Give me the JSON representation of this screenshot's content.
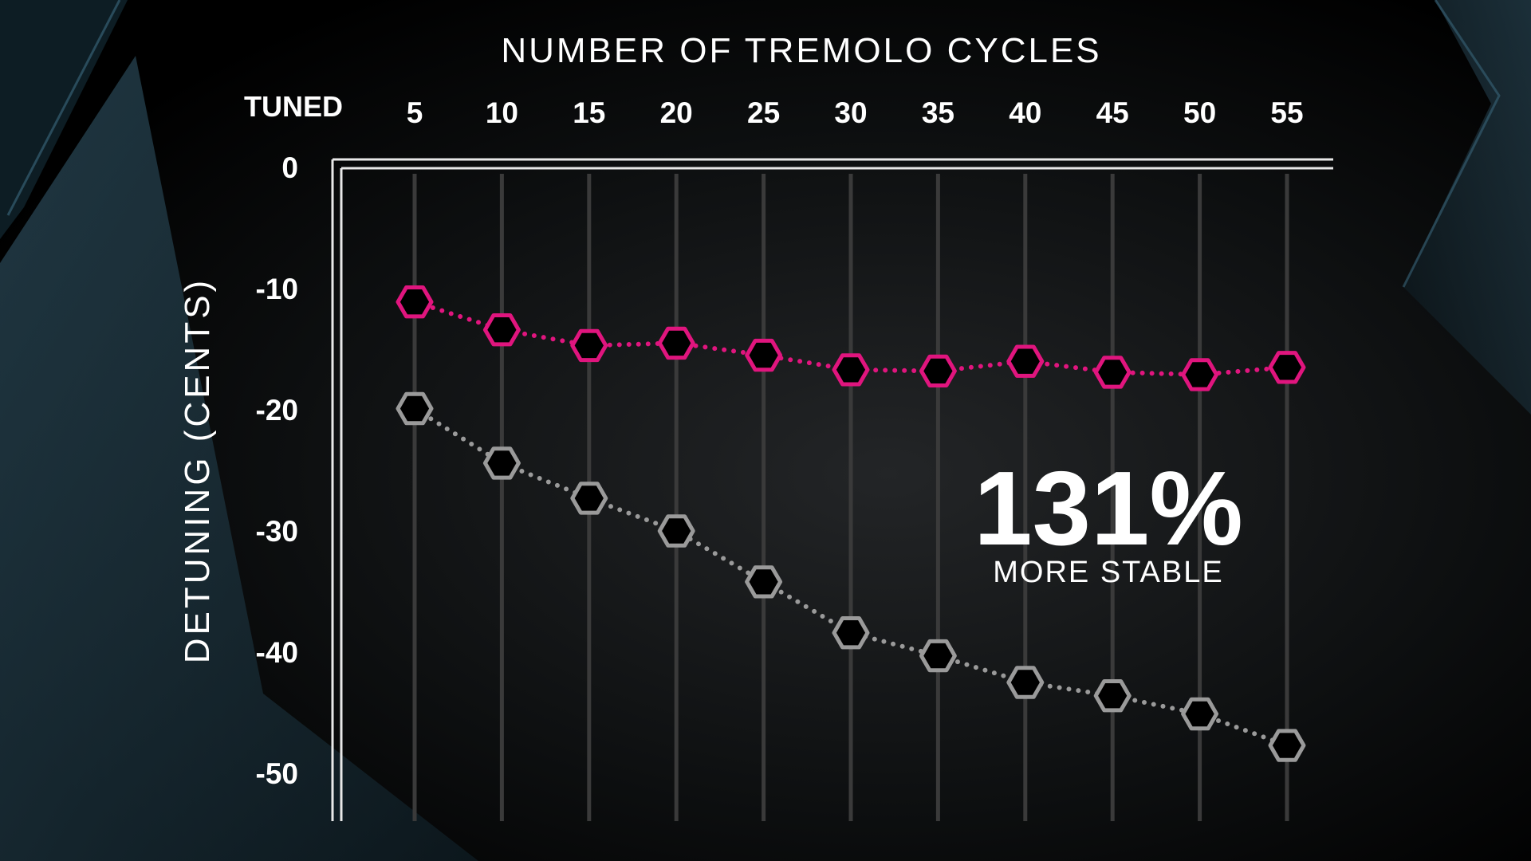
{
  "chart_data": {
    "type": "line",
    "title": "NUMBER OF TREMOLO CYCLES",
    "xlabel": "NUMBER OF TREMOLO CYCLES",
    "ylabel": "DETUNING (CENTS)",
    "x_start_label": "TUNED",
    "x": [
      5,
      10,
      15,
      20,
      25,
      30,
      35,
      40,
      45,
      50,
      55
    ],
    "y_ticks": [
      0,
      -10,
      -20,
      -30,
      -40,
      -50
    ],
    "ylim": [
      -53.5,
      0
    ],
    "grid": true,
    "series": [
      {
        "name": "",
        "color": "#e0157e",
        "marker": "hexagon",
        "line_style": "dotted",
        "values": [
          -11.1,
          -13.4,
          -14.7,
          -14.5,
          -15.5,
          -16.7,
          -16.8,
          -16.0,
          -16.9,
          -17.1,
          -16.5
        ]
      },
      {
        "name": "",
        "color": "#9a9a9a",
        "marker": "hexagon",
        "line_style": "dotted",
        "values": [
          -19.9,
          -24.4,
          -27.3,
          -30.0,
          -34.2,
          -38.4,
          -40.3,
          -42.5,
          -43.6,
          -45.1,
          -47.7
        ]
      }
    ],
    "annotations": [
      {
        "value": "131%",
        "text": "MORE STABLE"
      }
    ]
  },
  "colors": {
    "background": "#000000",
    "accent_teal": "#1d3a48",
    "highlight_series": "#e0157e",
    "baseline_series": "#9a9a9a",
    "text": "#ffffff"
  }
}
